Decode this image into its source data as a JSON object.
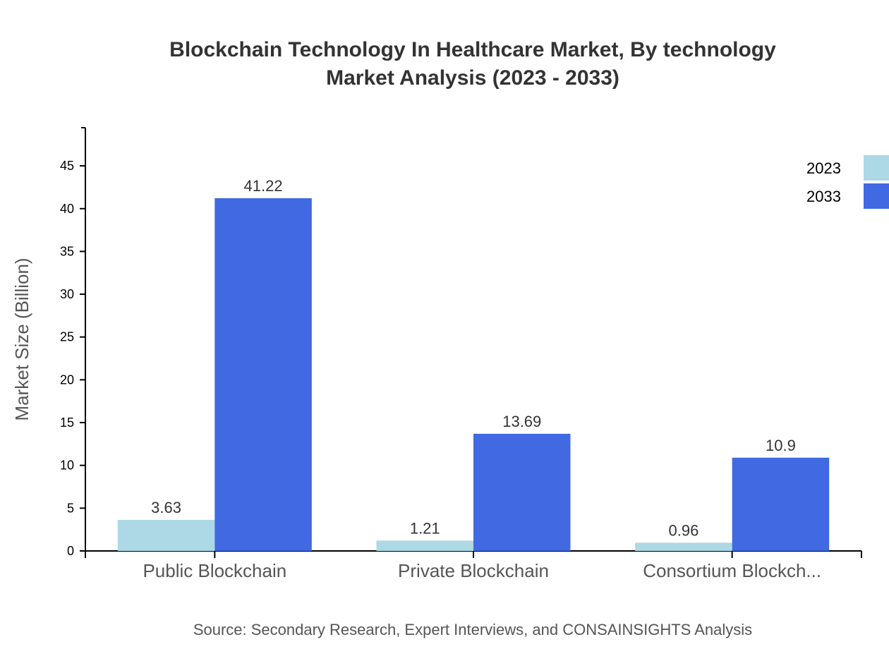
{
  "chart_data": {
    "type": "bar",
    "title": "Blockchain Technology In Healthcare Market, By technology",
    "subtitle": "Market Analysis (2023 - 2033)",
    "xlabel": "",
    "ylabel": "Market Size (Billion)",
    "categories": [
      "Public Blockchain",
      "Private Blockchain",
      "Consortium Blockch..."
    ],
    "series": [
      {
        "name": "2023",
        "values": [
          3.63,
          1.21,
          0.96
        ],
        "color": "#ADD8E6"
      },
      {
        "name": "2033",
        "values": [
          41.22,
          13.69,
          10.9
        ],
        "color": "#4169E1"
      }
    ],
    "ylim": [
      0,
      49.46
    ],
    "yticks": [
      0,
      5,
      10,
      15,
      20,
      25,
      30,
      35,
      40,
      45
    ],
    "grid": false,
    "legend": "top-right",
    "source": "Source: Secondary Research, Expert Interviews, and CONSAINSIGHTS Analysis"
  }
}
